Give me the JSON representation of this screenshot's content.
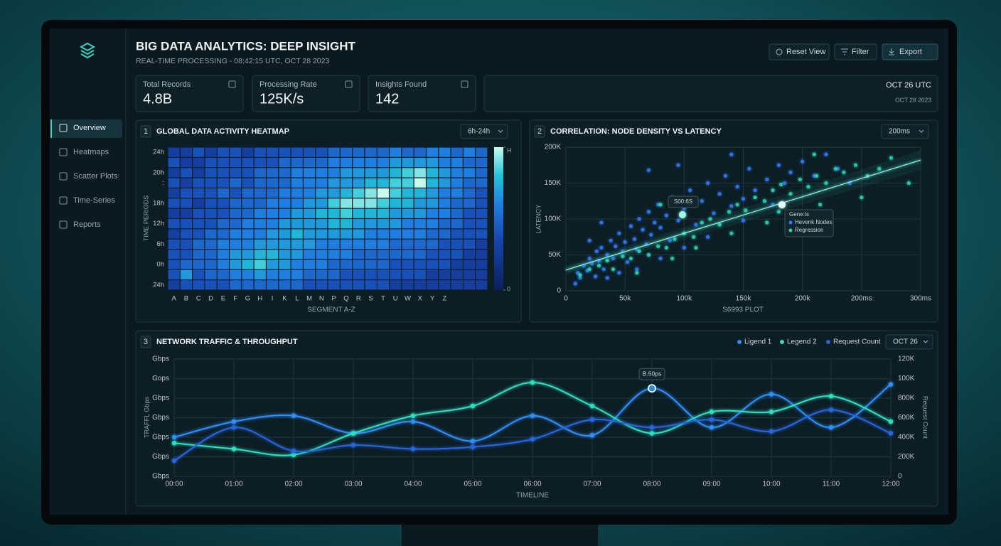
{
  "header": {
    "title": "BIG DATA ANALYTICS: DEEP INSIGHT",
    "subtitle": "REAL-TIME PROCESSING - 08:42:15 UTC, OCT 28 2023"
  },
  "buttons": [
    "Reset View",
    "Filter",
    "Export"
  ],
  "sidebar": [
    "Overview",
    "Heatmaps",
    "Scatter Plots",
    "Time-Series",
    "Reports"
  ],
  "kpis": [
    {
      "label": "Total Records",
      "value": "4.8B"
    },
    {
      "label": "Processing Rate",
      "value": "125K/s"
    },
    {
      "label": "Insights Found",
      "value": "142"
    }
  ],
  "date_card": {
    "line1": "OCT 26 UTC",
    "line2": "OCT 28 2023"
  },
  "chart_data": [
    {
      "type": "heatmap",
      "number": "1",
      "title": "GLOBAL DATA ACTIVITY HEATMAP",
      "dropdown": "6h-24h",
      "x_label": "SEGMENT A-Z",
      "y_label": "TIME PERIODS",
      "categories": [
        "A",
        "B",
        "C",
        "D",
        "E",
        "F",
        "G",
        "H",
        "I",
        "K",
        "L",
        "M",
        "N",
        "P",
        "Q",
        "R",
        "S",
        "T",
        "U",
        "W",
        "X",
        "Y",
        "Z",
        "",
        "",
        ""
      ],
      "rows": [
        "24h",
        null,
        "20h",
        ":",
        null,
        "18h",
        null,
        "12h",
        null,
        "6h",
        null,
        "0h",
        null,
        "24h"
      ],
      "values": [
        [
          2,
          2,
          3,
          2,
          3,
          3,
          2,
          3,
          3,
          3,
          3,
          3,
          3,
          4,
          4,
          4,
          4,
          4,
          5,
          4,
          4,
          5,
          5,
          4,
          5,
          4
        ],
        [
          3,
          2,
          2,
          3,
          3,
          3,
          3,
          3,
          3,
          4,
          4,
          4,
          4,
          5,
          5,
          5,
          5,
          5,
          6,
          6,
          6,
          6,
          5,
          5,
          4,
          4
        ],
        [
          2,
          3,
          2,
          3,
          3,
          3,
          3,
          4,
          4,
          4,
          5,
          5,
          5,
          5,
          6,
          6,
          6,
          6,
          7,
          8,
          9,
          7,
          6,
          5,
          5,
          4
        ],
        [
          3,
          2,
          3,
          3,
          3,
          4,
          3,
          4,
          4,
          4,
          5,
          5,
          5,
          6,
          6,
          6,
          7,
          7,
          8,
          8,
          10,
          7,
          6,
          5,
          4,
          4
        ],
        [
          2,
          3,
          3,
          3,
          4,
          3,
          4,
          4,
          4,
          5,
          5,
          5,
          6,
          6,
          7,
          8,
          9,
          10,
          8,
          7,
          7,
          6,
          5,
          5,
          4,
          3
        ],
        [
          3,
          3,
          2,
          3,
          3,
          4,
          4,
          4,
          5,
          5,
          5,
          6,
          6,
          8,
          9,
          9,
          9,
          8,
          7,
          7,
          6,
          6,
          5,
          4,
          4,
          3
        ],
        [
          2,
          2,
          3,
          3,
          3,
          4,
          4,
          5,
          5,
          5,
          6,
          6,
          7,
          7,
          8,
          7,
          7,
          7,
          6,
          6,
          6,
          5,
          5,
          4,
          3,
          3
        ],
        [
          3,
          3,
          3,
          3,
          4,
          4,
          5,
          5,
          5,
          6,
          6,
          6,
          6,
          7,
          7,
          6,
          6,
          6,
          6,
          5,
          5,
          5,
          4,
          4,
          3,
          3
        ],
        [
          2,
          3,
          3,
          4,
          4,
          5,
          5,
          5,
          6,
          6,
          7,
          6,
          6,
          6,
          6,
          6,
          5,
          5,
          5,
          5,
          5,
          4,
          4,
          3,
          3,
          3
        ],
        [
          3,
          3,
          4,
          4,
          5,
          5,
          5,
          6,
          6,
          6,
          6,
          6,
          5,
          5,
          5,
          5,
          5,
          5,
          4,
          4,
          4,
          4,
          3,
          3,
          3,
          2
        ],
        [
          3,
          3,
          4,
          4,
          5,
          6,
          6,
          7,
          7,
          6,
          6,
          5,
          5,
          5,
          5,
          4,
          4,
          4,
          4,
          4,
          4,
          3,
          3,
          3,
          2,
          2
        ],
        [
          3,
          4,
          4,
          4,
          5,
          6,
          7,
          8,
          6,
          6,
          5,
          5,
          5,
          4,
          4,
          4,
          4,
          4,
          3,
          3,
          3,
          3,
          3,
          2,
          2,
          2
        ],
        [
          3,
          6,
          3,
          4,
          4,
          5,
          5,
          6,
          5,
          5,
          5,
          4,
          4,
          4,
          3,
          3,
          3,
          3,
          3,
          3,
          3,
          2,
          2,
          2,
          2,
          2
        ],
        [
          2,
          3,
          3,
          3,
          3,
          4,
          4,
          4,
          4,
          4,
          4,
          3,
          3,
          3,
          3,
          3,
          3,
          3,
          2,
          2,
          2,
          2,
          2,
          2,
          2,
          2
        ]
      ],
      "clim": [
        0,
        10
      ],
      "colorbar_ticks": [
        {
          "value": 10,
          "label": "H"
        },
        0
      ]
    },
    {
      "type": "scatter",
      "number": "2",
      "title": "CORRELATION: NODE DENSITY VS LATENCY",
      "dropdown": "200ms",
      "x_label": "S6993 PLOT",
      "y_label": "LATENCY",
      "xlim": [
        0,
        300000
      ],
      "xticks": [
        0,
        {
          "value": 50000,
          "label": "50k"
        },
        {
          "value": 100000,
          "label": "100k"
        },
        {
          "value": 150000,
          "label": "150k"
        },
        {
          "value": 200000,
          "label": "200k"
        },
        {
          "value": 250000,
          "label": "200ms"
        },
        {
          "value": 300000,
          "label": "300ms"
        }
      ],
      "ylim": [
        0,
        200000
      ],
      "yticks": [
        0,
        {
          "value": 50000,
          "label": "50K"
        },
        {
          "value": 100000,
          "label": "100K"
        },
        {
          "value": 150000,
          "label": "150K"
        },
        {
          "value": 200000,
          "label": "200K"
        }
      ],
      "grid": true,
      "legend_title": "Gene:ts",
      "annotation": "S00:6S",
      "regression_line": {
        "intercept": 29000,
        "slope": 0.51
      },
      "series": [
        {
          "name": "Hevenk Nodes",
          "color": "#2f7dff",
          "x": [
            8000,
            10000,
            12000,
            15000,
            18000,
            20000,
            22000,
            25000,
            26000,
            28000,
            30000,
            32000,
            35000,
            38000,
            40000,
            42000,
            45000,
            48000,
            50000,
            52000,
            55000,
            58000,
            60000,
            62000,
            65000,
            68000,
            70000,
            72000,
            75000,
            78000,
            80000,
            85000,
            88000,
            90000,
            95000,
            100000,
            105000,
            110000,
            115000,
            120000,
            125000,
            130000,
            135000,
            140000,
            145000,
            150000,
            155000,
            160000,
            170000,
            175000,
            180000,
            185000,
            190000,
            200000,
            210000,
            220000,
            230000,
            240000,
            100000,
            60000,
            45000,
            150000,
            80000,
            35000,
            120000,
            70000,
            95000,
            140000,
            30000,
            20000
          ],
          "values": [
            10000,
            25000,
            18000,
            35000,
            28000,
            45000,
            38000,
            20000,
            55000,
            42000,
            60000,
            30000,
            50000,
            70000,
            45000,
            62000,
            80000,
            55000,
            68000,
            40000,
            90000,
            72000,
            58000,
            100000,
            85000,
            65000,
            110000,
            78000,
            95000,
            120000,
            88000,
            105000,
            70000,
            130000,
            98000,
            115000,
            140000,
            92000,
            125000,
            150000,
            108000,
            135000,
            160000,
            118000,
            145000,
            128000,
            170000,
            140000,
            155000,
            120000,
            175000,
            150000,
            165000,
            180000,
            160000,
            190000,
            170000,
            150000,
            60000,
            30000,
            25000,
            98000,
            45000,
            18000,
            75000,
            168000,
            175000,
            190000,
            95000,
            70000
          ]
        },
        {
          "name": "Regression",
          "color": "#2ad8b6",
          "x": [
            12000,
            20000,
            28000,
            35000,
            40000,
            48000,
            55000,
            62000,
            70000,
            78000,
            85000,
            92000,
            100000,
            108000,
            115000,
            122000,
            130000,
            138000,
            145000,
            152000,
            160000,
            168000,
            175000,
            182000,
            190000,
            198000,
            205000,
            212000,
            220000,
            228000,
            235000,
            245000,
            255000,
            265000,
            275000,
            290000,
            250000,
            215000,
            180000,
            140000,
            90000,
            60000,
            110000,
            170000,
            80000,
            210000
          ],
          "values": [
            22000,
            30000,
            35000,
            42000,
            30000,
            48000,
            45000,
            55000,
            50000,
            62000,
            60000,
            72000,
            80000,
            75000,
            95000,
            100000,
            92000,
            110000,
            120000,
            112000,
            130000,
            125000,
            140000,
            148000,
            135000,
            155000,
            145000,
            160000,
            150000,
            170000,
            165000,
            175000,
            160000,
            170000,
            185000,
            150000,
            130000,
            120000,
            110000,
            80000,
            45000,
            25000,
            60000,
            95000,
            120000,
            190000
          ]
        }
      ]
    },
    {
      "type": "line",
      "number": "3",
      "title": "NETWORK TRAFFIC & THROUGHPUT",
      "dropdown": "OCT 26",
      "x_label": "TIMELINE",
      "y_label": "TRAFFL Gbps",
      "y2_label": "Request Count",
      "annotation": "B.50ps",
      "categories": [
        "00:00",
        "01:00",
        "02:00",
        "03:00",
        "04:00",
        "05:00",
        "06:00",
        "07:00",
        "08:00",
        "09:00",
        "10:00",
        "11:00",
        "12:00"
      ],
      "ylim": [
        0,
        6
      ],
      "yticks": [
        {
          "value": 6,
          "label": "Gbps"
        },
        {
          "value": 5,
          "label": "Gops"
        },
        {
          "value": 4,
          "label": "Gbps"
        },
        {
          "value": 3,
          "label": "Gbps"
        },
        {
          "value": 2,
          "label": "Gbps"
        },
        {
          "value": 1,
          "label": "Gbps"
        },
        {
          "value": 0,
          "label": "Gbps"
        }
      ],
      "y2_labels": [
        "120K",
        "100K",
        "800K",
        "600K",
        "400K",
        "200K",
        "0"
      ],
      "grid": true,
      "series": [
        {
          "name": "Ligend 1",
          "color": "#2f8fff",
          "values": [
            2.0,
            2.8,
            3.1,
            2.2,
            2.8,
            1.8,
            3.1,
            2.1,
            4.5,
            2.5,
            4.2,
            2.5,
            4.7
          ]
        },
        {
          "name": "Legend 2",
          "color": "#2de0c0",
          "values": [
            1.7,
            1.4,
            1.1,
            2.2,
            3.1,
            3.6,
            4.8,
            3.6,
            2.2,
            3.3,
            3.3,
            4.1,
            2.8
          ]
        },
        {
          "name": "Request Count",
          "color": "#2766e0",
          "values": [
            0.8,
            2.5,
            1.3,
            1.6,
            1.4,
            1.5,
            1.9,
            2.9,
            2.5,
            2.9,
            2.3,
            3.4,
            2.2
          ]
        }
      ]
    }
  ]
}
